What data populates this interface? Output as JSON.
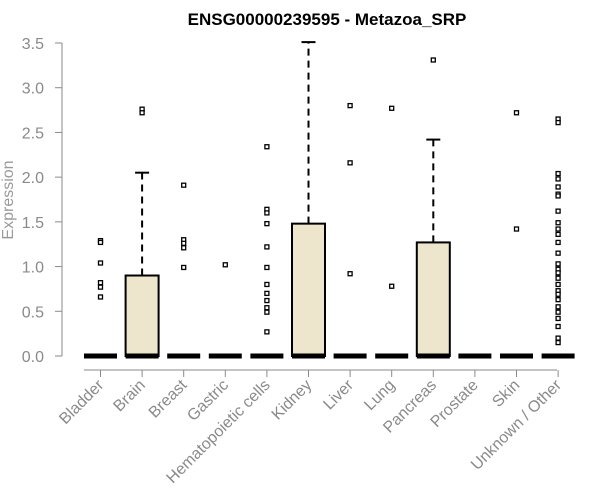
{
  "chart_data": {
    "type": "boxplot",
    "title": "ENSG00000239595 - Metazoa_SRP",
    "xlabel": "",
    "ylabel": "Expression",
    "ylim": [
      0,
      3.5
    ],
    "yticks": [
      "0.0",
      "0.5",
      "1.0",
      "1.5",
      "2.0",
      "2.5",
      "3.0",
      "3.5"
    ],
    "grid": false,
    "box_fill": "#ede6cc",
    "categories": [
      "Bladder",
      "Brain",
      "Breast",
      "Gastric",
      "Hematopoietic cells",
      "Kidney",
      "Liver",
      "Lung",
      "Pancreas",
      "Prostate",
      "Skin",
      "Unknown / Other"
    ],
    "boxes": [
      {
        "category": "Bladder",
        "q1": 0,
        "median": 0,
        "q3": 0,
        "whisker_low": 0,
        "whisker_high": 0,
        "outliers": [
          1.29,
          1.27,
          1.04,
          0.82,
          0.77,
          0.66
        ]
      },
      {
        "category": "Brain",
        "q1": 0,
        "median": 0,
        "q3": 0.9,
        "whisker_low": 0,
        "whisker_high": 2.05,
        "outliers": [
          2.76,
          2.72
        ]
      },
      {
        "category": "Breast",
        "q1": 0,
        "median": 0,
        "q3": 0,
        "whisker_low": 0,
        "whisker_high": 0,
        "outliers": [
          1.91,
          1.3,
          1.26,
          1.21,
          0.99
        ]
      },
      {
        "category": "Gastric",
        "q1": 0,
        "median": 0,
        "q3": 0,
        "whisker_low": 0,
        "whisker_high": 0,
        "outliers": [
          1.02
        ]
      },
      {
        "category": "Hematopoietic cells",
        "q1": 0,
        "median": 0,
        "q3": 0,
        "whisker_low": 0,
        "whisker_high": 0,
        "outliers": [
          2.34,
          1.64,
          1.6,
          1.48,
          1.22,
          0.99,
          0.8,
          0.7,
          0.62,
          0.54,
          0.49,
          0.27
        ]
      },
      {
        "category": "Kidney",
        "q1": 0,
        "median": 0,
        "q3": 1.48,
        "whisker_low": 0,
        "whisker_high": 3.51,
        "outliers": []
      },
      {
        "category": "Liver",
        "q1": 0,
        "median": 0,
        "q3": 0,
        "whisker_low": 0,
        "whisker_high": 0,
        "outliers": [
          2.8,
          2.16,
          0.92
        ]
      },
      {
        "category": "Lung",
        "q1": 0,
        "median": 0,
        "q3": 0,
        "whisker_low": 0,
        "whisker_high": 0,
        "outliers": [
          2.77,
          0.78
        ]
      },
      {
        "category": "Pancreas",
        "q1": 0,
        "median": 0,
        "q3": 1.27,
        "whisker_low": 0,
        "whisker_high": 2.42,
        "outliers": [
          3.31
        ]
      },
      {
        "category": "Prostate",
        "q1": 0,
        "median": 0,
        "q3": 0,
        "whisker_low": 0,
        "whisker_high": 0,
        "outliers": []
      },
      {
        "category": "Skin",
        "q1": 0,
        "median": 0,
        "q3": 0,
        "whisker_low": 0,
        "whisker_high": 0,
        "outliers": [
          2.72,
          1.42
        ]
      },
      {
        "category": "Unknown / Other",
        "q1": 0,
        "median": 0,
        "q3": 0,
        "whisker_low": 0,
        "whisker_high": 0,
        "outliers": [
          2.65,
          2.61,
          2.04,
          1.98,
          1.89,
          1.81,
          1.79,
          1.62,
          1.49,
          1.42,
          1.36,
          1.27,
          1.15,
          1.03,
          0.97,
          0.93,
          0.87,
          0.8,
          0.73,
          0.69,
          0.63,
          0.55,
          0.49,
          0.42,
          0.33,
          0.2,
          0.15
        ]
      }
    ]
  }
}
